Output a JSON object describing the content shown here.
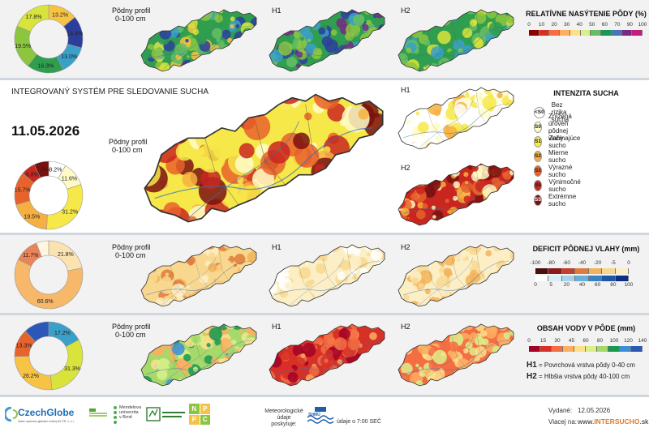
{
  "date": "11.05.2026",
  "system_title": "INTEGROVANÝ SYSTÉM PRE SLEDOVANIE SUCHA",
  "map_labels": {
    "profile_line1": "Pôdny profil",
    "profile_line2": "0-100 cm",
    "h1": "H1",
    "h2": "H2"
  },
  "saturation": {
    "title": "RELATÍVNE NASÝTENIE PÔDY (%)",
    "ticks": [
      "0",
      "10",
      "20",
      "30",
      "40",
      "50",
      "60",
      "70",
      "90",
      "100"
    ],
    "colors": [
      "#8b0000",
      "#d7301f",
      "#f46d43",
      "#fdae61",
      "#fee08b",
      "#d9ef8b",
      "#66bd63",
      "#1a9850",
      "#4575b4",
      "#762a83",
      "#c51b7d"
    ],
    "donut": [
      {
        "label": "13.2%",
        "value": 13.2,
        "color": "#f6c344"
      },
      {
        "label": "14.4%",
        "value": 14.4,
        "color": "#2c3e9c"
      },
      {
        "label": "13.0%",
        "value": 13.0,
        "color": "#3aa0c9"
      },
      {
        "label": "16.3%",
        "value": 16.3,
        "color": "#2f9e4f"
      },
      {
        "label": "19.5%",
        "value": 19.5,
        "color": "#8cc63f"
      },
      {
        "label": "17.8%",
        "value": 17.8,
        "color": "#d8e33b"
      }
    ]
  },
  "drought": {
    "title": "INTENZITA SUCHA",
    "legend": [
      {
        "code": "<S0",
        "text": "Bez rizika sucha",
        "color": "#ffffff",
        "fg": "#222"
      },
      {
        "code": "S0",
        "text": "Znížená úroveň pôdnej vlahy",
        "color": "#fffbc8",
        "fg": "#222"
      },
      {
        "code": "S1",
        "text": "Začínajúce sucho",
        "color": "#f7e84a",
        "fg": "#222"
      },
      {
        "code": "S2",
        "text": "Mierne sucho",
        "color": "#f6b041",
        "fg": "#222"
      },
      {
        "code": "S3",
        "text": "Výrazné sucho",
        "color": "#e8622b",
        "fg": "#222"
      },
      {
        "code": "S4",
        "text": "Výnimočné sucho",
        "color": "#c9261e",
        "fg": "#222"
      },
      {
        "code": "S5",
        "text": "Extrémne sucho",
        "color": "#7a1010",
        "fg": "#ffffff"
      }
    ],
    "donut": [
      {
        "label": "8.2%",
        "value": 8.2,
        "color": "#ffffff"
      },
      {
        "label": "11.6%",
        "value": 11.6,
        "color": "#fffbc8"
      },
      {
        "label": "31.2%",
        "value": 31.2,
        "color": "#f7e84a"
      },
      {
        "label": "19.5%",
        "value": 19.5,
        "color": "#f6b041"
      },
      {
        "label": "15.7%",
        "value": 15.7,
        "color": "#e8622b"
      },
      {
        "label": "6.8%",
        "value": 6.8,
        "color": "#c9261e"
      },
      {
        "label": "7.0%",
        "value": 7.0,
        "color": "#7a1010"
      }
    ]
  },
  "deficit": {
    "title": "DEFICIT PÔDNEJ VLAHY (mm)",
    "ticks_top": [
      "-100",
      "-80",
      "-60",
      "-40",
      "-20",
      "-5",
      "0"
    ],
    "colors_top": [
      "#4a1010",
      "#8b1a1a",
      "#c2412c",
      "#e07b3c",
      "#f2b35a",
      "#f8d88f",
      "#fcefc5"
    ],
    "ticks_bottom": [
      "0",
      "5",
      "20",
      "40",
      "60",
      "80",
      "100"
    ],
    "colors_bottom": [
      "#ffffff",
      "#d8eef7",
      "#a6d3ea",
      "#69aed8",
      "#3a82c2",
      "#1f57a5",
      "#0e2f80"
    ],
    "donut": [
      {
        "label": "21.8%",
        "value": 21.8,
        "color": "#fbe3b1"
      },
      {
        "label": "60.6%",
        "value": 60.6,
        "color": "#f7b86a"
      },
      {
        "label": "11.7%",
        "value": 11.7,
        "color": "#e9835a"
      },
      {
        "label": "",
        "value": 5.9,
        "color": "#fff6e0"
      }
    ]
  },
  "content": {
    "title": "OBSAH VODY V PÔDE (mm)",
    "ticks": [
      "0",
      "15",
      "30",
      "45",
      "60",
      "80",
      "100",
      "120",
      "140"
    ],
    "colors": [
      "#a50026",
      "#d73027",
      "#f46d43",
      "#fdae61",
      "#fee08b",
      "#d9ef8b",
      "#a6d96a",
      "#1a9850",
      "#3b8fd9",
      "#2c56b8"
    ],
    "h1_code": "H1",
    "h1_text": "= Povrchová vrstva pôdy 0-40 cm",
    "h2_code": "H2",
    "h2_text": "= Hlbšia vrstva pôdy 40-100 cm",
    "donut": [
      {
        "label": "17.2%",
        "value": 17.2,
        "color": "#3aa0c9"
      },
      {
        "label": "31.3%",
        "value": 31.3,
        "color": "#d8e33b"
      },
      {
        "label": "26.2%",
        "value": 26.2,
        "color": "#f6c344"
      },
      {
        "label": "13.3%",
        "value": 13.3,
        "color": "#e8622b"
      },
      {
        "label": "",
        "value": 12.0,
        "color": "#2c56b8"
      }
    ]
  },
  "footer": {
    "czechglobe": "CzechGlobe",
    "czechglobe_sub": "Ústav výzkumu globální změny AV ČR, v. v. i.",
    "mendelu": "Mendelova univerzita v Brně",
    "meteo": "Meteorologické údaje poskytuje:",
    "shmu": "SHMÚ",
    "meteo_time": "údaje o 7:00 SEČ",
    "issued_label": "Vydané:",
    "issued_date": "12.05.2026",
    "more_label": "Viacej na:",
    "url_pre": "www.",
    "url_mid": "INTERSUCHO",
    "url_post": ".sk",
    "npp": [
      "N",
      "P",
      "P",
      "C"
    ]
  },
  "icons": {
    "czechglobe_logo": "globe-logo",
    "mendelu_logo": "leaf-dots-logo",
    "udrzitelnost_logo": "bird-logo",
    "shmu_logo": "waves-logo"
  }
}
